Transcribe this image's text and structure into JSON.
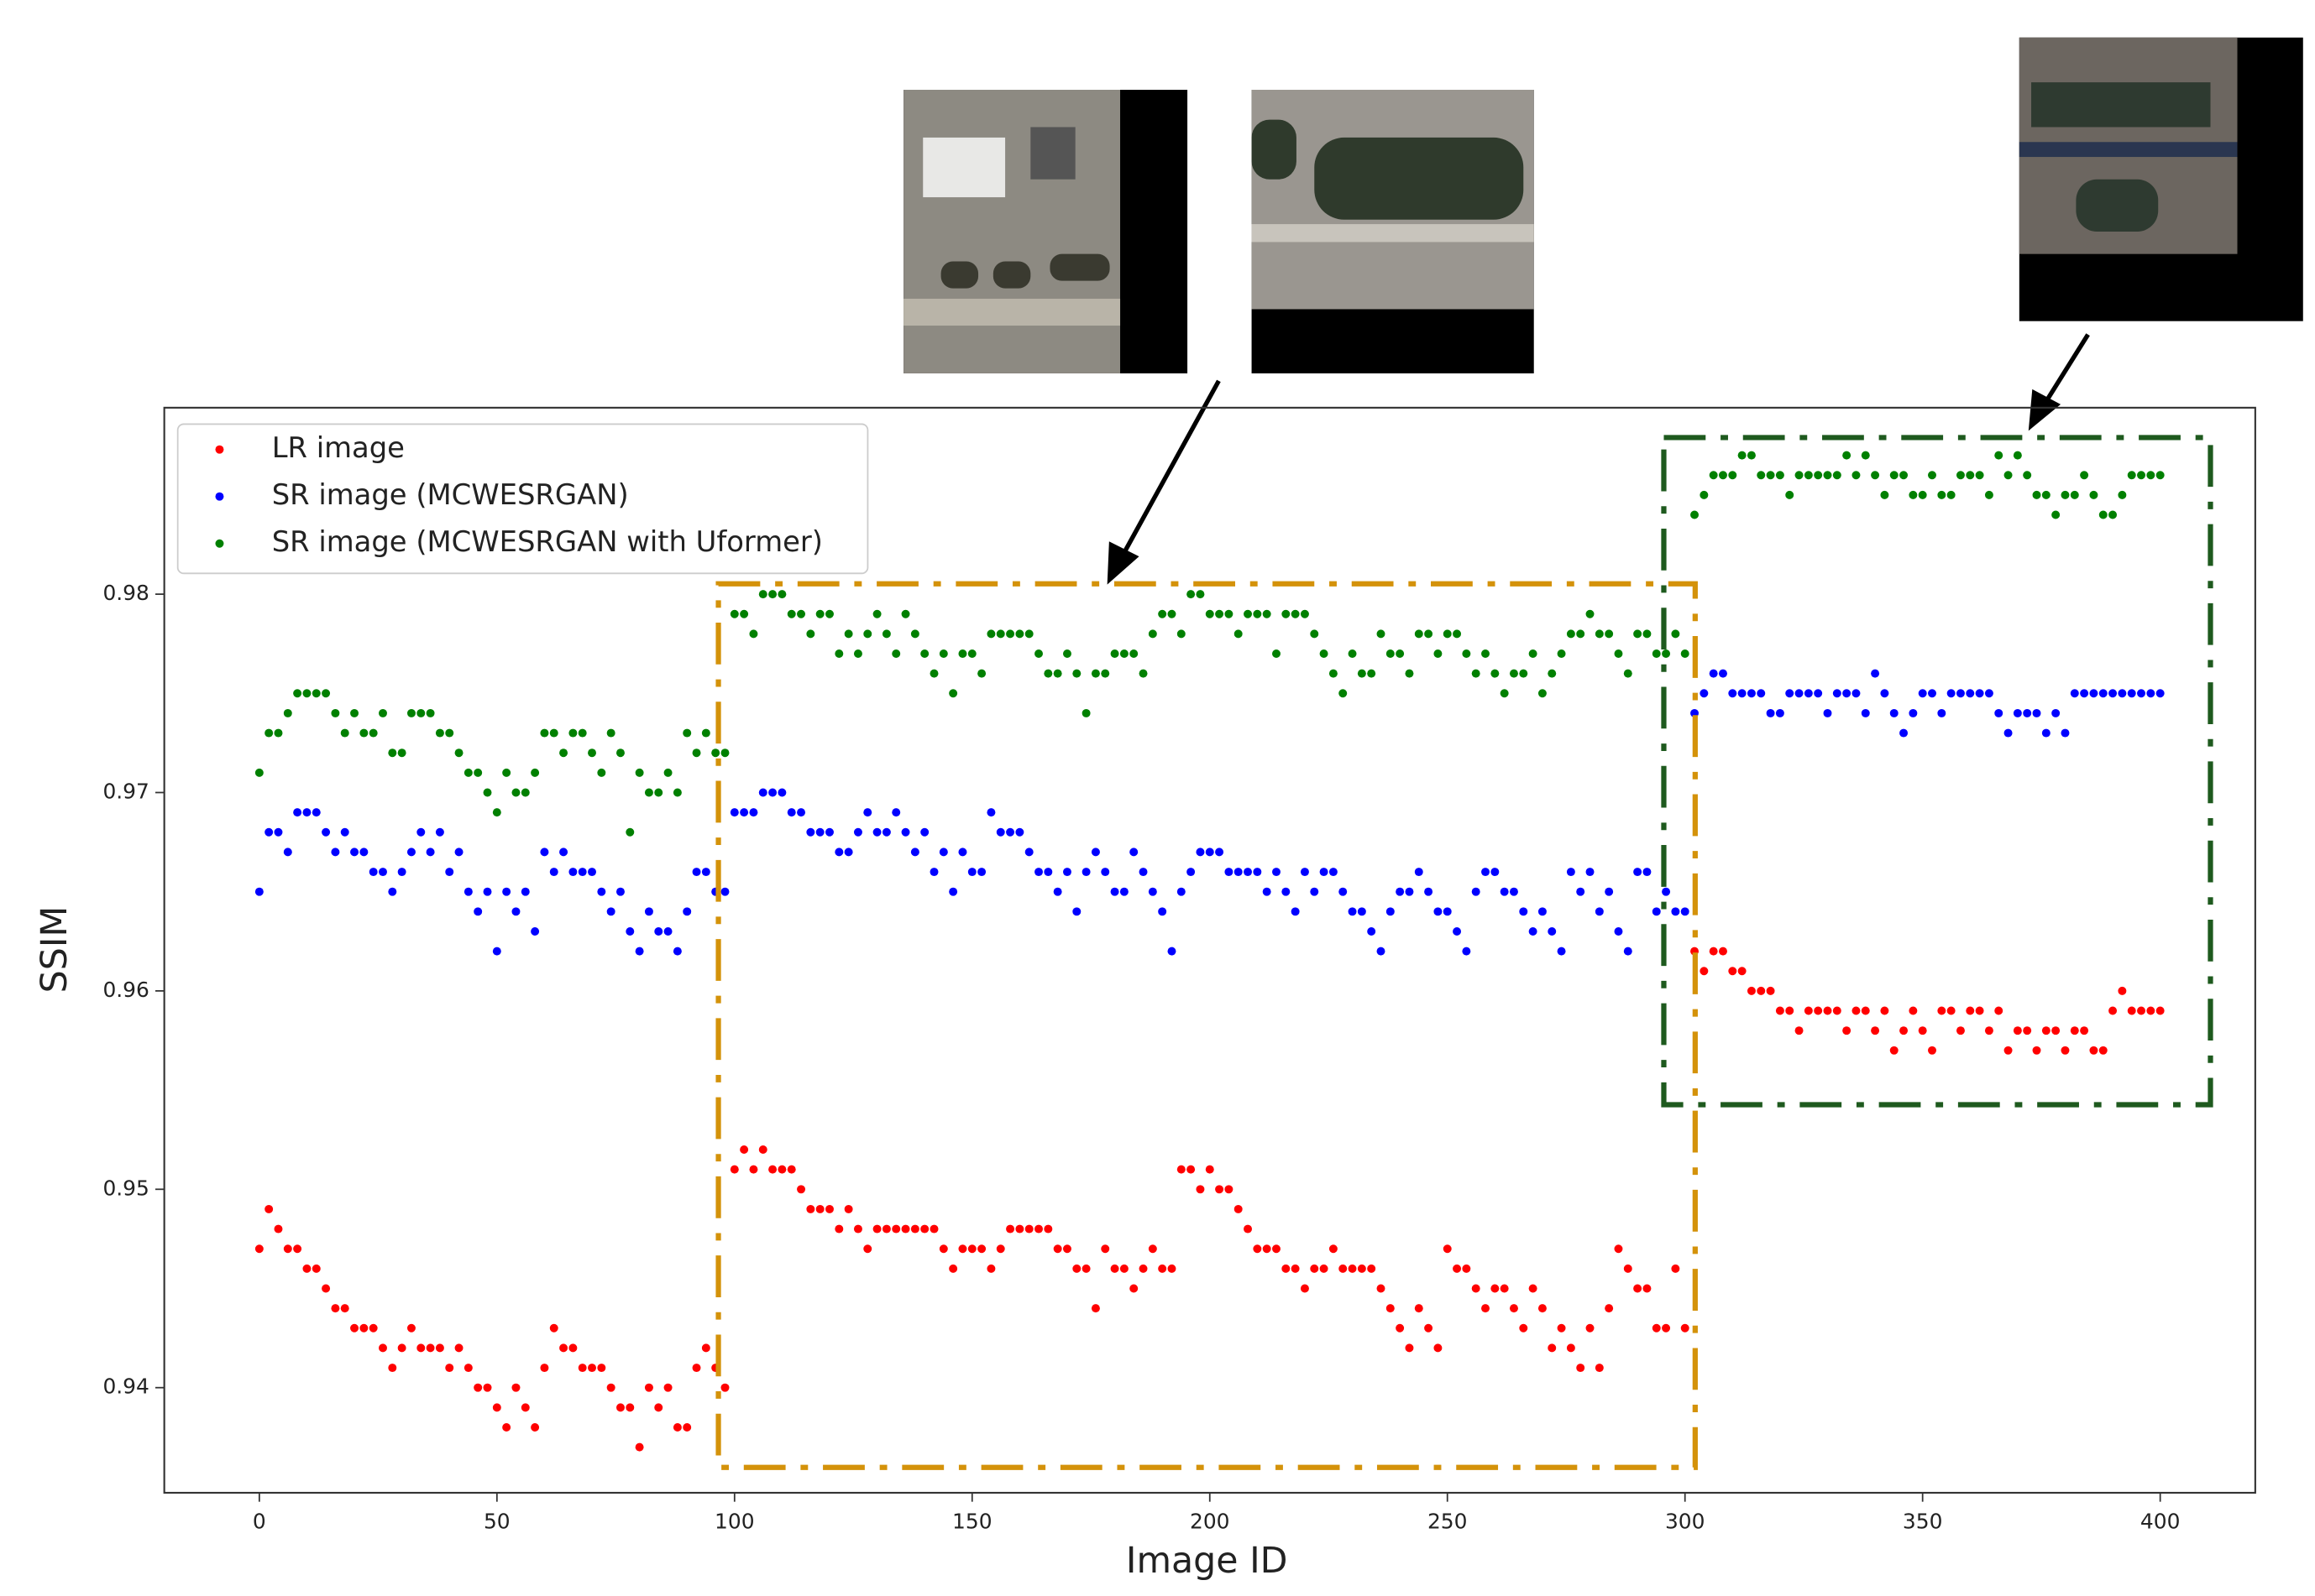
{
  "chart_data": {
    "type": "scatter",
    "xlabel": "Image ID",
    "ylabel": "SSIM",
    "legend": "upper left",
    "xlim": [
      -20,
      420
    ],
    "ylim": [
      0.9347,
      0.9894
    ],
    "xticks": [
      0,
      50,
      100,
      150,
      200,
      250,
      300,
      350,
      400
    ],
    "yticks": [
      0.94,
      0.95,
      0.96,
      0.97,
      0.98
    ],
    "x": [
      0,
      2,
      4,
      6,
      8,
      10,
      12,
      14,
      16,
      18,
      20,
      22,
      24,
      26,
      28,
      30,
      32,
      34,
      36,
      38,
      40,
      42,
      44,
      46,
      48,
      50,
      52,
      54,
      56,
      58,
      60,
      62,
      64,
      66,
      68,
      70,
      72,
      74,
      76,
      78,
      80,
      82,
      84,
      86,
      88,
      90,
      92,
      94,
      96,
      98,
      100,
      102,
      104,
      106,
      108,
      110,
      112,
      114,
      116,
      118,
      120,
      122,
      124,
      126,
      128,
      130,
      132,
      134,
      136,
      138,
      140,
      142,
      144,
      146,
      148,
      150,
      152,
      154,
      156,
      158,
      160,
      162,
      164,
      166,
      168,
      170,
      172,
      174,
      176,
      178,
      180,
      182,
      184,
      186,
      188,
      190,
      192,
      194,
      196,
      198,
      200,
      202,
      204,
      206,
      208,
      210,
      212,
      214,
      216,
      218,
      220,
      222,
      224,
      226,
      228,
      230,
      232,
      234,
      236,
      238,
      240,
      242,
      244,
      246,
      248,
      250,
      252,
      254,
      256,
      258,
      260,
      262,
      264,
      266,
      268,
      270,
      272,
      274,
      276,
      278,
      280,
      282,
      284,
      286,
      288,
      290,
      292,
      294,
      296,
      298,
      300,
      302,
      304,
      306,
      308,
      310,
      312,
      314,
      316,
      318,
      320,
      322,
      324,
      326,
      328,
      330,
      332,
      334,
      336,
      338,
      340,
      342,
      344,
      346,
      348,
      350,
      352,
      354,
      356,
      358,
      360,
      362,
      364,
      366,
      368,
      370,
      372,
      374,
      376,
      378,
      380,
      382,
      384,
      386,
      388,
      390,
      392,
      394,
      396,
      398,
      400
    ],
    "series": [
      {
        "name": "LR image",
        "color": "#ff0000",
        "values": [
          0.947,
          0.949,
          0.948,
          0.947,
          0.947,
          0.946,
          0.946,
          0.945,
          0.944,
          0.944,
          0.943,
          0.943,
          0.943,
          0.942,
          0.941,
          0.942,
          0.943,
          0.942,
          0.942,
          0.942,
          0.941,
          0.942,
          0.941,
          0.94,
          0.94,
          0.939,
          0.938,
          0.94,
          0.939,
          0.938,
          0.941,
          0.943,
          0.942,
          0.942,
          0.941,
          0.941,
          0.941,
          0.94,
          0.939,
          0.939,
          0.937,
          0.94,
          0.939,
          0.94,
          0.938,
          0.938,
          0.941,
          0.942,
          0.941,
          0.94,
          0.951,
          0.952,
          0.951,
          0.952,
          0.951,
          0.951,
          0.951,
          0.95,
          0.949,
          0.949,
          0.949,
          0.948,
          0.949,
          0.948,
          0.947,
          0.948,
          0.948,
          0.948,
          0.948,
          0.948,
          0.948,
          0.948,
          0.947,
          0.946,
          0.947,
          0.947,
          0.947,
          0.946,
          0.947,
          0.948,
          0.948,
          0.948,
          0.948,
          0.948,
          0.947,
          0.947,
          0.946,
          0.946,
          0.944,
          0.947,
          0.946,
          0.946,
          0.945,
          0.946,
          0.947,
          0.946,
          0.946,
          0.951,
          0.951,
          0.95,
          0.951,
          0.95,
          0.95,
          0.949,
          0.948,
          0.947,
          0.947,
          0.947,
          0.946,
          0.946,
          0.945,
          0.946,
          0.946,
          0.947,
          0.946,
          0.946,
          0.946,
          0.946,
          0.945,
          0.944,
          0.943,
          0.942,
          0.944,
          0.943,
          0.942,
          0.947,
          0.946,
          0.946,
          0.945,
          0.944,
          0.945,
          0.945,
          0.944,
          0.943,
          0.945,
          0.944,
          0.942,
          0.943,
          0.942,
          0.941,
          0.943,
          0.941,
          0.944,
          0.947,
          0.946,
          0.945,
          0.945,
          0.943,
          0.943,
          0.946,
          0.943,
          0.962,
          0.961,
          0.962,
          0.962,
          0.961,
          0.961,
          0.96,
          0.96,
          0.96,
          0.959,
          0.959,
          0.958,
          0.959,
          0.959,
          0.959,
          0.959,
          0.958,
          0.959,
          0.959,
          0.958,
          0.959,
          0.957,
          0.958,
          0.959,
          0.958,
          0.957,
          0.959,
          0.959,
          0.958,
          0.959,
          0.959,
          0.958,
          0.959,
          0.957,
          0.958,
          0.958,
          0.957,
          0.958,
          0.958,
          0.957,
          0.958,
          0.958,
          0.957,
          0.957,
          0.959,
          0.96,
          0.959,
          0.959,
          0.959,
          0.959
        ]
      },
      {
        "name": "SR image (MCWESRGAN)",
        "color": "#0000ff",
        "values": [
          0.965,
          0.968,
          0.968,
          0.967,
          0.969,
          0.969,
          0.969,
          0.968,
          0.967,
          0.968,
          0.967,
          0.967,
          0.966,
          0.966,
          0.965,
          0.966,
          0.967,
          0.968,
          0.967,
          0.968,
          0.966,
          0.967,
          0.965,
          0.964,
          0.965,
          0.962,
          0.965,
          0.964,
          0.965,
          0.963,
          0.967,
          0.966,
          0.967,
          0.966,
          0.966,
          0.966,
          0.965,
          0.964,
          0.965,
          0.963,
          0.962,
          0.964,
          0.963,
          0.963,
          0.962,
          0.964,
          0.966,
          0.966,
          0.965,
          0.965,
          0.969,
          0.969,
          0.969,
          0.97,
          0.97,
          0.97,
          0.969,
          0.969,
          0.968,
          0.968,
          0.968,
          0.967,
          0.967,
          0.968,
          0.969,
          0.968,
          0.968,
          0.969,
          0.968,
          0.967,
          0.968,
          0.966,
          0.967,
          0.965,
          0.967,
          0.966,
          0.966,
          0.969,
          0.968,
          0.968,
          0.968,
          0.967,
          0.966,
          0.966,
          0.965,
          0.966,
          0.964,
          0.966,
          0.967,
          0.966,
          0.965,
          0.965,
          0.967,
          0.966,
          0.965,
          0.964,
          0.962,
          0.965,
          0.966,
          0.967,
          0.967,
          0.967,
          0.966,
          0.966,
          0.966,
          0.966,
          0.965,
          0.966,
          0.965,
          0.964,
          0.966,
          0.965,
          0.966,
          0.966,
          0.965,
          0.964,
          0.964,
          0.963,
          0.962,
          0.964,
          0.965,
          0.965,
          0.966,
          0.965,
          0.964,
          0.964,
          0.963,
          0.962,
          0.965,
          0.966,
          0.966,
          0.965,
          0.965,
          0.964,
          0.963,
          0.964,
          0.963,
          0.962,
          0.966,
          0.965,
          0.966,
          0.964,
          0.965,
          0.963,
          0.962,
          0.966,
          0.966,
          0.964,
          0.965,
          0.964,
          0.964,
          0.974,
          0.975,
          0.976,
          0.976,
          0.975,
          0.975,
          0.975,
          0.975,
          0.974,
          0.974,
          0.975,
          0.975,
          0.975,
          0.975,
          0.974,
          0.975,
          0.975,
          0.975,
          0.974,
          0.976,
          0.975,
          0.974,
          0.973,
          0.974,
          0.975,
          0.975,
          0.974,
          0.975,
          0.975,
          0.975,
          0.975,
          0.975,
          0.974,
          0.973,
          0.974,
          0.974,
          0.974,
          0.973,
          0.974,
          0.973,
          0.975,
          0.975,
          0.975,
          0.975,
          0.975,
          0.975,
          0.975,
          0.975,
          0.975,
          0.975
        ]
      },
      {
        "name": "SR image (MCWESRGAN with Uformer)",
        "color": "#008000",
        "values": [
          0.971,
          0.973,
          0.973,
          0.974,
          0.975,
          0.975,
          0.975,
          0.975,
          0.974,
          0.973,
          0.974,
          0.973,
          0.973,
          0.974,
          0.972,
          0.972,
          0.974,
          0.974,
          0.974,
          0.973,
          0.973,
          0.972,
          0.971,
          0.971,
          0.97,
          0.969,
          0.971,
          0.97,
          0.97,
          0.971,
          0.973,
          0.973,
          0.972,
          0.973,
          0.973,
          0.972,
          0.971,
          0.973,
          0.972,
          0.968,
          0.971,
          0.97,
          0.97,
          0.971,
          0.97,
          0.973,
          0.972,
          0.973,
          0.972,
          0.972,
          0.979,
          0.979,
          0.978,
          0.98,
          0.98,
          0.98,
          0.979,
          0.979,
          0.978,
          0.979,
          0.979,
          0.977,
          0.978,
          0.977,
          0.978,
          0.979,
          0.978,
          0.977,
          0.979,
          0.978,
          0.977,
          0.976,
          0.977,
          0.975,
          0.977,
          0.977,
          0.976,
          0.978,
          0.978,
          0.978,
          0.978,
          0.978,
          0.977,
          0.976,
          0.976,
          0.977,
          0.976,
          0.974,
          0.976,
          0.976,
          0.977,
          0.977,
          0.977,
          0.976,
          0.978,
          0.979,
          0.979,
          0.978,
          0.98,
          0.98,
          0.979,
          0.979,
          0.979,
          0.978,
          0.979,
          0.979,
          0.979,
          0.977,
          0.979,
          0.979,
          0.979,
          0.978,
          0.977,
          0.976,
          0.975,
          0.977,
          0.976,
          0.976,
          0.978,
          0.977,
          0.977,
          0.976,
          0.978,
          0.978,
          0.977,
          0.978,
          0.978,
          0.977,
          0.976,
          0.977,
          0.976,
          0.975,
          0.976,
          0.976,
          0.977,
          0.975,
          0.976,
          0.977,
          0.978,
          0.978,
          0.979,
          0.978,
          0.978,
          0.977,
          0.976,
          0.978,
          0.978,
          0.977,
          0.977,
          0.978,
          0.977,
          0.984,
          0.985,
          0.986,
          0.986,
          0.986,
          0.987,
          0.987,
          0.986,
          0.986,
          0.986,
          0.985,
          0.986,
          0.986,
          0.986,
          0.986,
          0.986,
          0.987,
          0.986,
          0.987,
          0.986,
          0.985,
          0.986,
          0.986,
          0.985,
          0.985,
          0.986,
          0.985,
          0.985,
          0.986,
          0.986,
          0.986,
          0.985,
          0.987,
          0.986,
          0.987,
          0.986,
          0.985,
          0.985,
          0.984,
          0.985,
          0.985,
          0.986,
          0.985,
          0.984,
          0.984,
          0.985,
          0.986,
          0.986,
          0.986,
          0.986
        ]
      }
    ]
  }
}
